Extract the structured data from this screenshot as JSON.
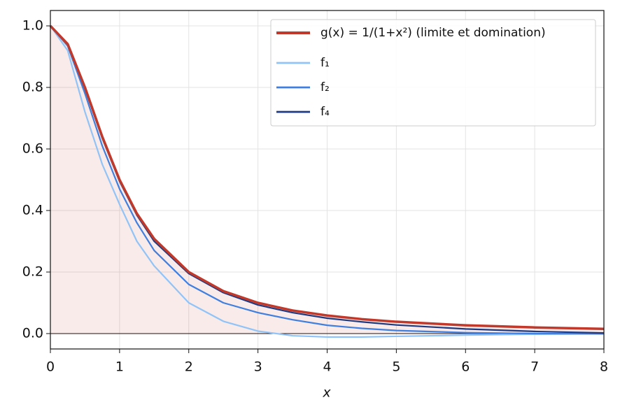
{
  "chart_data": {
    "type": "line",
    "x_label": "x",
    "x": [
      0,
      0.25,
      0.5,
      0.75,
      1,
      1.25,
      1.5,
      2,
      2.5,
      3,
      3.5,
      4,
      4.5,
      5,
      6,
      7,
      8
    ],
    "series": [
      {
        "name": "g(x) = 1/(1+x²) (limite et domination)",
        "color": "#c0392b",
        "fill": true,
        "values": [
          1,
          0.941,
          0.8,
          0.64,
          0.5,
          0.39,
          0.308,
          0.2,
          0.138,
          0.1,
          0.075,
          0.0588,
          0.047,
          0.0385,
          0.027,
          0.02,
          0.0154
        ]
      },
      {
        "name": "f₁",
        "color": "#90c4f9",
        "values": [
          1,
          0.92,
          0.72,
          0.55,
          0.42,
          0.3,
          0.22,
          0.1,
          0.04,
          0.008,
          -0.007,
          -0.011,
          -0.011,
          -0.009,
          -0.005,
          -0.002,
          0
        ]
      },
      {
        "name": "f₂",
        "color": "#3f7fe0",
        "values": [
          1,
          0.935,
          0.78,
          0.61,
          0.47,
          0.36,
          0.27,
          0.16,
          0.1,
          0.068,
          0.045,
          0.027,
          0.017,
          0.01,
          0.003,
          0,
          -0.001
        ]
      },
      {
        "name": "f₄",
        "color": "#1f3a80",
        "values": [
          1,
          0.94,
          0.795,
          0.635,
          0.495,
          0.385,
          0.3,
          0.195,
          0.133,
          0.093,
          0.068,
          0.05,
          0.038,
          0.028,
          0.015,
          0.007,
          0.002
        ]
      }
    ],
    "xlim": [
      0,
      8
    ],
    "xticks": [
      0,
      1,
      2,
      3,
      4,
      5,
      6,
      7,
      8
    ],
    "ylim": [
      -0.05,
      1.05
    ],
    "yticks": [
      {
        "value": 0,
        "label": "0.0"
      },
      {
        "value": 0.2,
        "label": "0.2"
      },
      {
        "value": 0.4,
        "label": "0.4"
      },
      {
        "value": 0.6,
        "label": "0.6"
      },
      {
        "value": 0.8,
        "label": "0.8"
      },
      {
        "value": 1,
        "label": "1.0"
      }
    ],
    "grid": true,
    "legend": "upper right"
  }
}
